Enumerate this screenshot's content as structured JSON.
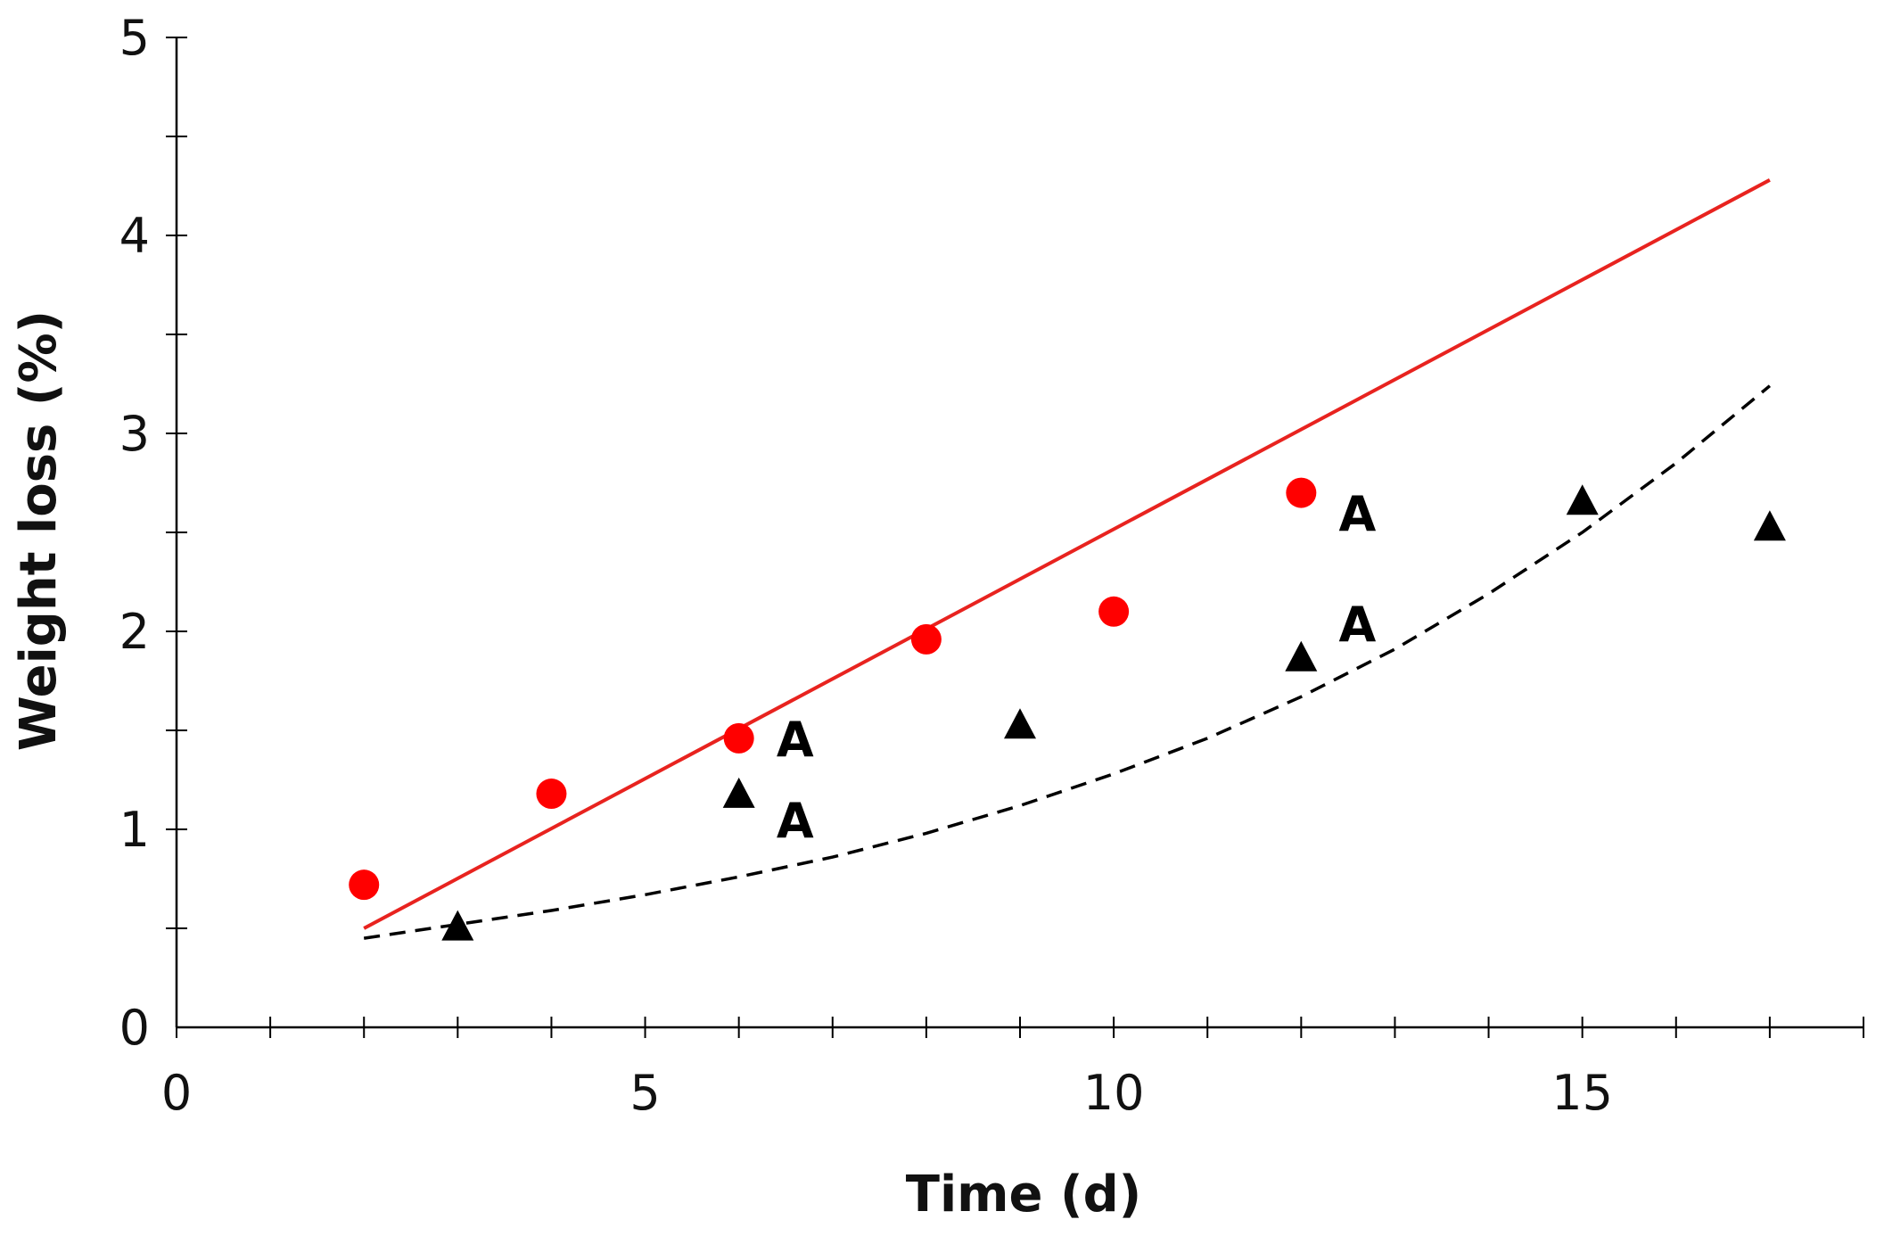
{
  "chart_data": {
    "type": "scatter",
    "title": "",
    "xlabel": "Time (d)",
    "ylabel": "Weight loss (%)",
    "xlim": [
      0,
      18
    ],
    "ylim": [
      0,
      5
    ],
    "x_major_ticks": [
      0,
      5,
      10,
      15
    ],
    "x_minor_ticks": [
      1,
      2,
      3,
      4,
      6,
      7,
      8,
      9,
      11,
      12,
      13,
      14,
      16,
      17,
      18
    ],
    "y_major_ticks": [
      0,
      1,
      2,
      3,
      4,
      5
    ],
    "y_minor_ticks": [
      0.5,
      1.5,
      2.5,
      3.5,
      4.5
    ],
    "x_tick_labels": [
      "0",
      "5",
      "10",
      "15"
    ],
    "y_tick_labels": [
      "0",
      "1",
      "2",
      "3",
      "4",
      "5"
    ],
    "grid": false,
    "series": [
      {
        "name": "red circles",
        "marker": "circle",
        "color": "#ff0000",
        "x": [
          2,
          4,
          6,
          8,
          10,
          12
        ],
        "y": [
          0.72,
          1.18,
          1.46,
          1.96,
          2.1,
          2.7
        ]
      },
      {
        "name": "black triangles",
        "marker": "triangle",
        "color": "#000000",
        "x": [
          3,
          6,
          9,
          12,
          15,
          17
        ],
        "y": [
          0.5,
          1.17,
          1.52,
          1.86,
          2.65,
          2.52
        ]
      }
    ],
    "fits": [
      {
        "name": "red linear fit",
        "style": "solid",
        "color": "#e8231f",
        "x": [
          2,
          17
        ],
        "y": [
          0.5,
          4.28
        ]
      },
      {
        "name": "black dashed fit",
        "style": "dashed",
        "color": "#000000",
        "x": [
          2,
          3,
          4,
          5,
          6,
          7,
          8,
          9,
          10,
          11,
          12,
          13,
          14,
          15,
          16,
          17
        ],
        "y": [
          0.45,
          0.52,
          0.59,
          0.67,
          0.76,
          0.86,
          0.98,
          1.12,
          1.28,
          1.46,
          1.67,
          1.91,
          2.19,
          2.5,
          2.85,
          3.24
        ]
      }
    ],
    "annotations": [
      {
        "text": "A",
        "x": 6.6,
        "y": 1.46
      },
      {
        "text": "A",
        "x": 6.6,
        "y": 1.05
      },
      {
        "text": "A",
        "x": 12.6,
        "y": 2.6
      },
      {
        "text": "A",
        "x": 12.6,
        "y": 2.04
      }
    ]
  }
}
